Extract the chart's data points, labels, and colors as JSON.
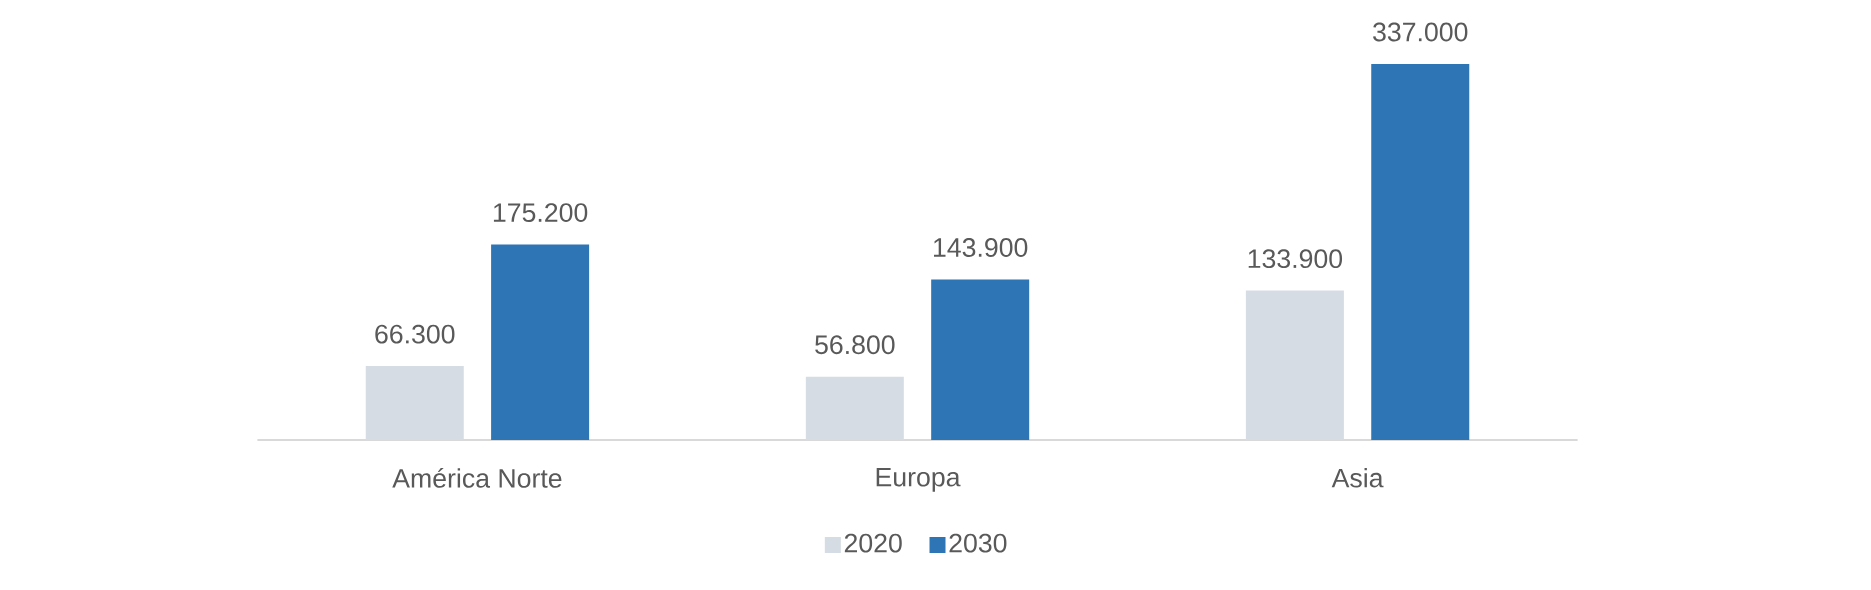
{
  "chart_data": {
    "type": "bar",
    "categories": [
      "América Norte",
      "Europa",
      "Asia"
    ],
    "series": [
      {
        "name": "2020",
        "color": "#d6dce4",
        "values": [
          66300,
          56800,
          133900
        ],
        "value_labels": [
          "66.300",
          "56.800",
          "133.900"
        ]
      },
      {
        "name": "2030",
        "color": "#2e75b6",
        "values": [
          175200,
          143900,
          337000
        ],
        "value_labels": [
          "175.200",
          "143.900",
          "337.000"
        ]
      }
    ],
    "legend": "bottom"
  }
}
